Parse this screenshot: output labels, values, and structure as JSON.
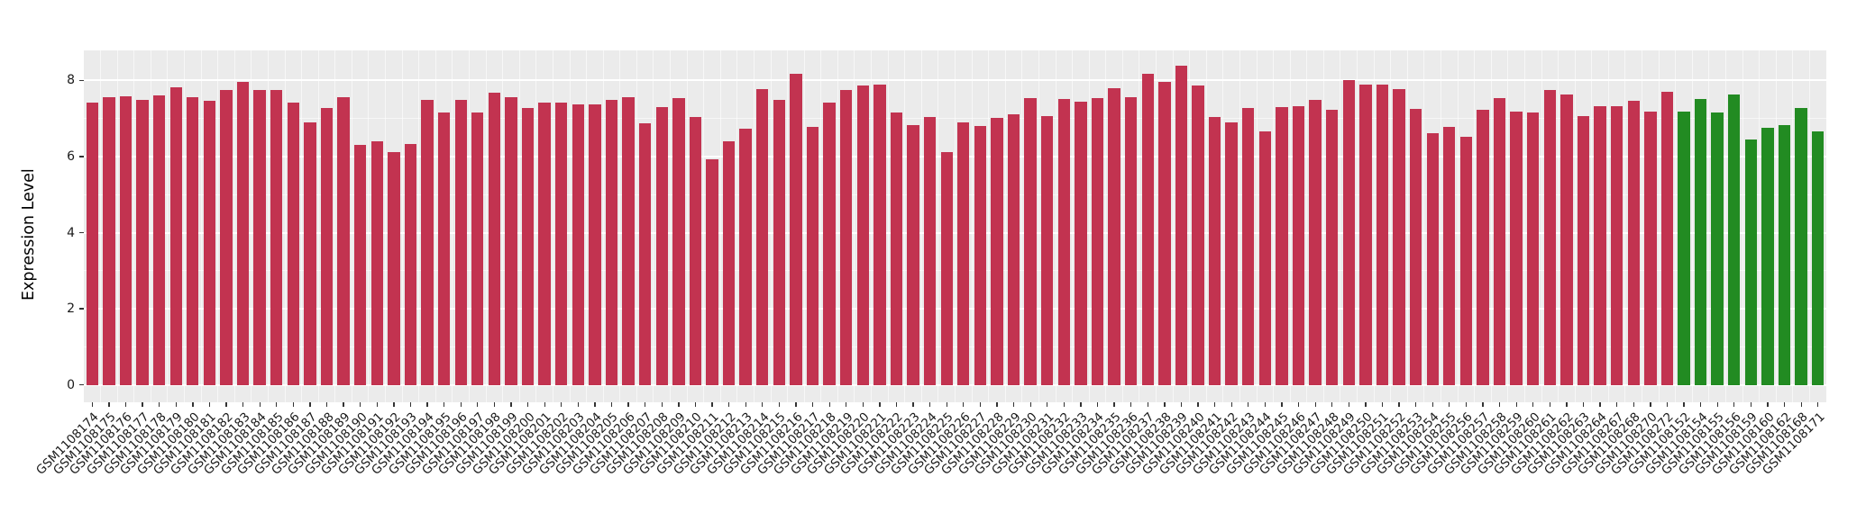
{
  "chart_data": {
    "type": "bar",
    "title": "",
    "xlabel": "",
    "ylabel": "Expression Level",
    "yticks": [
      0,
      2,
      4,
      6,
      8
    ],
    "ytick_labels": [
      "0",
      "2",
      "4",
      "6",
      "8"
    ],
    "minor_yticks": [
      1,
      3,
      5,
      7
    ],
    "ylim": [
      -0.456,
      8.79
    ],
    "grid": "on",
    "legend_position": "none",
    "colors": {
      "panel_background": "#EBEBEB",
      "grid_major": "#FFFFFF",
      "grid_minor": "rgba(255,255,255,0.6)",
      "axis_text": "#1a1a1a",
      "tick_mark": "#333333",
      "red_group": "#C23350",
      "green_group": "#228B22"
    },
    "series": [
      {
        "name": "red",
        "color": "#C23350",
        "categories": [
          "GSM1108174",
          "GSM1108175",
          "GSM1108176",
          "GSM1108177",
          "GSM1108178",
          "GSM1108179",
          "GSM1108180",
          "GSM1108181",
          "GSM1108182",
          "GSM1108183",
          "GSM1108184",
          "GSM1108185",
          "GSM1108186",
          "GSM1108187",
          "GSM1108188",
          "GSM1108189",
          "GSM1108190",
          "GSM1108191",
          "GSM1108192",
          "GSM1108193",
          "GSM1108194",
          "GSM1108195",
          "GSM1108196",
          "GSM1108197",
          "GSM1108198",
          "GSM1108199",
          "GSM1108200",
          "GSM1108201",
          "GSM1108202",
          "GSM1108203",
          "GSM1108204",
          "GSM1108205",
          "GSM1108206",
          "GSM1108207",
          "GSM1108208",
          "GSM1108209",
          "GSM1108210",
          "GSM1108211",
          "GSM1108212",
          "GSM1108213",
          "GSM1108214",
          "GSM1108215",
          "GSM1108216",
          "GSM1108217",
          "GSM1108218",
          "GSM1108219",
          "GSM1108220",
          "GSM1108221",
          "GSM1108222",
          "GSM1108223",
          "GSM1108224",
          "GSM1108225",
          "GSM1108226",
          "GSM1108227",
          "GSM1108228",
          "GSM1108229",
          "GSM1108230",
          "GSM1108231",
          "GSM1108232",
          "GSM1108233",
          "GSM1108234",
          "GSM1108235",
          "GSM1108236",
          "GSM1108237",
          "GSM1108238",
          "GSM1108239",
          "GSM1108240",
          "GSM1108241",
          "GSM1108242",
          "GSM1108243",
          "GSM1108244",
          "GSM1108245",
          "GSM1108246",
          "GSM1108247",
          "GSM1108248",
          "GSM1108249",
          "GSM1108250",
          "GSM1108251",
          "GSM1108252",
          "GSM1108253",
          "GSM1108254",
          "GSM1108255",
          "GSM1108256",
          "GSM1108257",
          "GSM1108258",
          "GSM1108259",
          "GSM1108260",
          "GSM1108261",
          "GSM1108262",
          "GSM1108263",
          "GSM1108264",
          "GSM1108267",
          "GSM1108268",
          "GSM1108270",
          "GSM1108272"
        ],
        "values": [
          7.43,
          7.55,
          7.58,
          7.49,
          7.6,
          7.83,
          7.57,
          7.46,
          7.76,
          7.96,
          7.76,
          7.76,
          7.43,
          6.9,
          7.27,
          7.57,
          6.31,
          6.41,
          6.11,
          6.33,
          7.49,
          7.15,
          7.49,
          7.17,
          7.68,
          7.57,
          7.27,
          7.41,
          7.42,
          7.38,
          7.38,
          7.49,
          7.55,
          6.87,
          7.31,
          7.53,
          7.04,
          5.92,
          6.41,
          6.74,
          7.78,
          7.49,
          8.17,
          6.78,
          7.41,
          7.76,
          7.86,
          7.88,
          7.15,
          6.83,
          7.04,
          6.11,
          6.9,
          6.8,
          7.01,
          7.12,
          7.53,
          7.07,
          7.51,
          7.45,
          7.53,
          7.79,
          7.56,
          8.17,
          7.96,
          8.39,
          7.86,
          7.05,
          6.9,
          7.27,
          6.66,
          7.29,
          7.33,
          7.5,
          7.23,
          8.02,
          7.88,
          7.88,
          7.78,
          7.25,
          6.62,
          6.79,
          6.52,
          7.23,
          7.53,
          7.19,
          7.17,
          7.74,
          7.64,
          7.07,
          7.33,
          7.33,
          7.46,
          7.19,
          7.7
        ]
      },
      {
        "name": "green",
        "color": "#228B22",
        "categories": [
          "GSM1108152",
          "GSM1108154",
          "GSM1108155",
          "GSM1108156",
          "GSM1108159",
          "GSM1108160",
          "GSM1108162",
          "GSM1108168",
          "GSM1108171"
        ],
        "values": [
          7.19,
          7.51,
          7.15,
          7.64,
          6.45,
          6.76,
          6.82,
          7.28,
          6.67
        ]
      }
    ]
  }
}
